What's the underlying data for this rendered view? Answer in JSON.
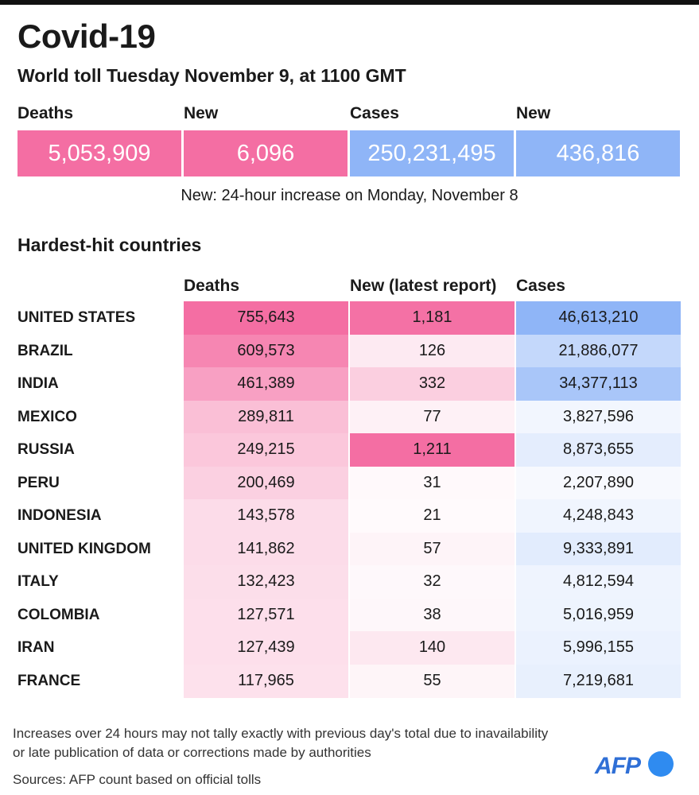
{
  "header": {
    "title": "Covid-19",
    "subtitle": "World toll Tuesday November 9, at 1100 GMT"
  },
  "summary": {
    "labels": [
      "Deaths",
      "New",
      "Cases",
      "New"
    ],
    "values": [
      "5,053,909",
      "6,096",
      "250,231,495",
      "436,816"
    ],
    "colors": [
      "#f46ea3",
      "#f46ea3",
      "#8fb5f7",
      "#8fb5f7"
    ],
    "note": "New: 24-hour increase on Monday, November 8"
  },
  "section_title": "Hardest-hit countries",
  "colors": {
    "deaths_max": "#f46ea3",
    "new_max": "#f46ea3",
    "cases_max": "#8fb5f7"
  },
  "chart_data": {
    "type": "table",
    "columns": [
      "Deaths",
      "New (latest report)",
      "Cases"
    ],
    "rows": [
      {
        "country": "UNITED STATES",
        "deaths": "755,643",
        "new": "1,181",
        "cases": "46,613,210",
        "d": 755643,
        "n": 1181,
        "c": 46613210
      },
      {
        "country": "BRAZIL",
        "deaths": "609,573",
        "new": "126",
        "cases": "21,886,077",
        "d": 609573,
        "n": 126,
        "c": 21886077
      },
      {
        "country": "INDIA",
        "deaths": "461,389",
        "new": "332",
        "cases": "34,377,113",
        "d": 461389,
        "n": 332,
        "c": 34377113
      },
      {
        "country": "MEXICO",
        "deaths": "289,811",
        "new": "77",
        "cases": "3,827,596",
        "d": 289811,
        "n": 77,
        "c": 3827596
      },
      {
        "country": "RUSSIA",
        "deaths": "249,215",
        "new": "1,211",
        "cases": "8,873,655",
        "d": 249215,
        "n": 1211,
        "c": 8873655
      },
      {
        "country": "PERU",
        "deaths": "200,469",
        "new": "31",
        "cases": "2,207,890",
        "d": 200469,
        "n": 31,
        "c": 2207890
      },
      {
        "country": "INDONESIA",
        "deaths": "143,578",
        "new": "21",
        "cases": "4,248,843",
        "d": 143578,
        "n": 21,
        "c": 4248843
      },
      {
        "country": "UNITED KINGDOM",
        "deaths": "141,862",
        "new": "57",
        "cases": "9,333,891",
        "d": 141862,
        "n": 57,
        "c": 9333891
      },
      {
        "country": "ITALY",
        "deaths": "132,423",
        "new": "32",
        "cases": "4,812,594",
        "d": 132423,
        "n": 32,
        "c": 4812594
      },
      {
        "country": "COLOMBIA",
        "deaths": "127,571",
        "new": "38",
        "cases": "5,016,959",
        "d": 127571,
        "n": 38,
        "c": 5016959
      },
      {
        "country": "IRAN",
        "deaths": "127,439",
        "new": "140",
        "cases": "5,996,155",
        "d": 127439,
        "n": 140,
        "c": 5996155
      },
      {
        "country": "FRANCE",
        "deaths": "117,965",
        "new": "55",
        "cases": "7,219,681",
        "d": 117965,
        "n": 55,
        "c": 7219681
      }
    ]
  },
  "footer": {
    "line1": "Increases over 24 hours may not tally exactly with previous day's total due to inavailability",
    "line2": "or late publication of data or corrections made by authorities",
    "sources": "Sources: AFP count based on official tolls",
    "logo": "AFP"
  }
}
